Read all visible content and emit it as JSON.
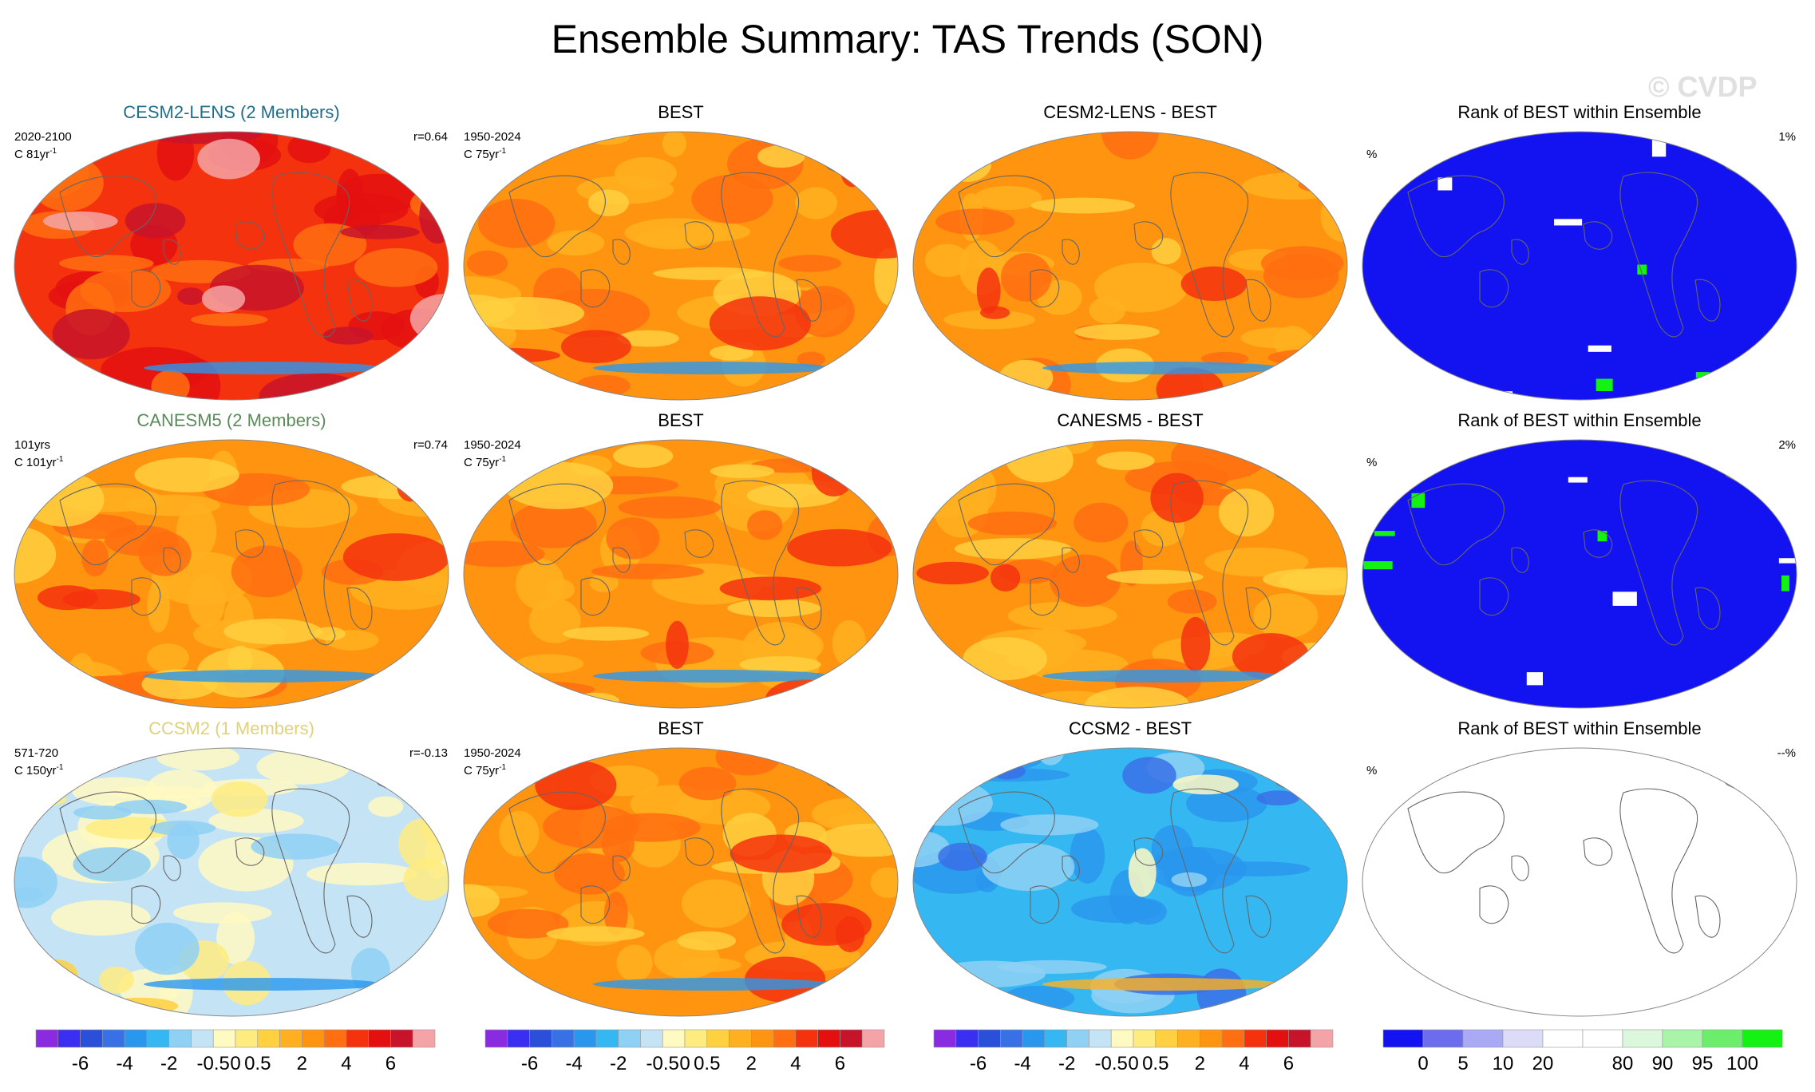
{
  "title": "Ensemble Summary: TAS Trends (SON)",
  "watermark": "© CVDP",
  "rows": [
    {
      "model": {
        "title": "CESM2-LENS (2 Members)",
        "title_color": "#1f6f8b",
        "period": "2020-2100",
        "trend_label": "C 81yr",
        "trend_sup": "-1",
        "r": "r=0.64",
        "fill": "red"
      },
      "obs": {
        "title": "BEST",
        "period": "1950-2024",
        "trend_label": "C 75yr",
        "trend_sup": "-1",
        "fill": "orange"
      },
      "diff": {
        "title": "CESM2-LENS - BEST",
        "fill": "orange"
      },
      "rank": {
        "title": "Rank of BEST within Ensemble",
        "pct_label": "%",
        "value": "1%",
        "fill": "blue"
      }
    },
    {
      "model": {
        "title": "CANESM5 (2 Members)",
        "title_color": "#5b8a5b",
        "period": "101yrs",
        "trend_label": "C 101yr",
        "trend_sup": "-1",
        "r": "r=0.74",
        "fill": "orange"
      },
      "obs": {
        "title": "BEST",
        "period": "1950-2024",
        "trend_label": "C 75yr",
        "trend_sup": "-1",
        "fill": "orange"
      },
      "diff": {
        "title": "CANESM5 - BEST",
        "fill": "orange"
      },
      "rank": {
        "title": "Rank of BEST within Ensemble",
        "pct_label": "%",
        "value": "2%",
        "fill": "blue"
      }
    },
    {
      "model": {
        "title": "CCSM2 (1 Members)",
        "title_color": "#e0d27a",
        "period": "571-720",
        "trend_label": "C 150yr",
        "trend_sup": "-1",
        "r": "r=-0.13",
        "fill": "pale"
      },
      "obs": {
        "title": "BEST",
        "period": "1950-2024",
        "trend_label": "C 75yr",
        "trend_sup": "-1",
        "fill": "orange"
      },
      "diff": {
        "title": "CCSM2 - BEST",
        "fill": "blue_light"
      },
      "rank": {
        "title": "Rank of BEST within Ensemble",
        "pct_label": "%",
        "value": "--%",
        "fill": "white"
      }
    }
  ],
  "trend_colorbar": {
    "colors": [
      "#8a2be2",
      "#3a2ef0",
      "#2a4fd8",
      "#3a70e6",
      "#2a97ee",
      "#35b8f2",
      "#8fd0f4",
      "#c4e4f6",
      "#fff9c2",
      "#ffec80",
      "#ffd040",
      "#ffb020",
      "#ff9410",
      "#ff6e10",
      "#f5320e",
      "#e41010",
      "#c8142a",
      "#f4a4a6"
    ],
    "labels": [
      "-6",
      "-4",
      "-2",
      "-0.5",
      "0",
      "0.5",
      "2",
      "4",
      "6"
    ]
  },
  "rank_colorbar": {
    "colors": [
      "#1313f2",
      "#6c6cee",
      "#aaaaf4",
      "#dcdcf8",
      "#ffffff",
      "#ffffff",
      "#dcf8dc",
      "#aaf4aa",
      "#6cee6c",
      "#13f213"
    ],
    "labels": [
      "0",
      "5",
      "10",
      "20",
      "80",
      "90",
      "95",
      "100"
    ]
  }
}
